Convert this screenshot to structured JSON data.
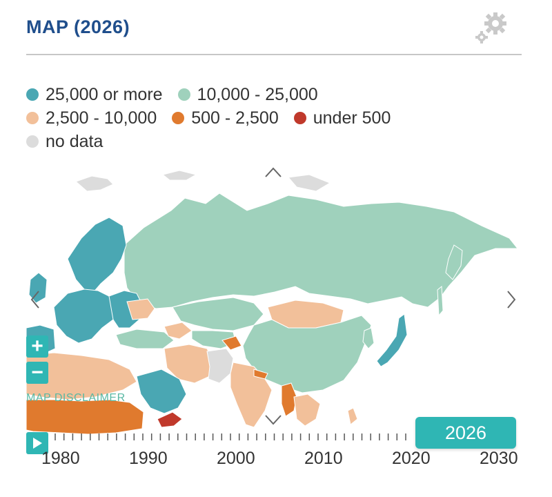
{
  "header": {
    "title": "MAP (2026)"
  },
  "legend": [
    {
      "label": "25,000 or more",
      "color": "#4aa7b3"
    },
    {
      "label": "10,000 - 25,000",
      "color": "#9fd1bc"
    },
    {
      "label": "2,500 - 10,000",
      "color": "#f2c09a"
    },
    {
      "label": "500 - 2,500",
      "color": "#e07a2e"
    },
    {
      "label": "under 500",
      "color": "#c0392b"
    },
    {
      "label": "no data",
      "color": "#dcdcdc"
    }
  ],
  "map": {
    "disclaimer": "MAP DISCLAIMER",
    "zoom_in": "+",
    "zoom_out": "−",
    "fills": {
      "high": "#4aa7b3",
      "mid": "#9fd1bc",
      "low": "#f2c09a",
      "lower": "#e07a2e",
      "lowest": "#c0392b",
      "nodata": "#dcdcdc"
    }
  },
  "timeline": {
    "years": [
      "1980",
      "1990",
      "2000",
      "2010",
      "2020",
      "2030"
    ],
    "current_year": "2026"
  }
}
